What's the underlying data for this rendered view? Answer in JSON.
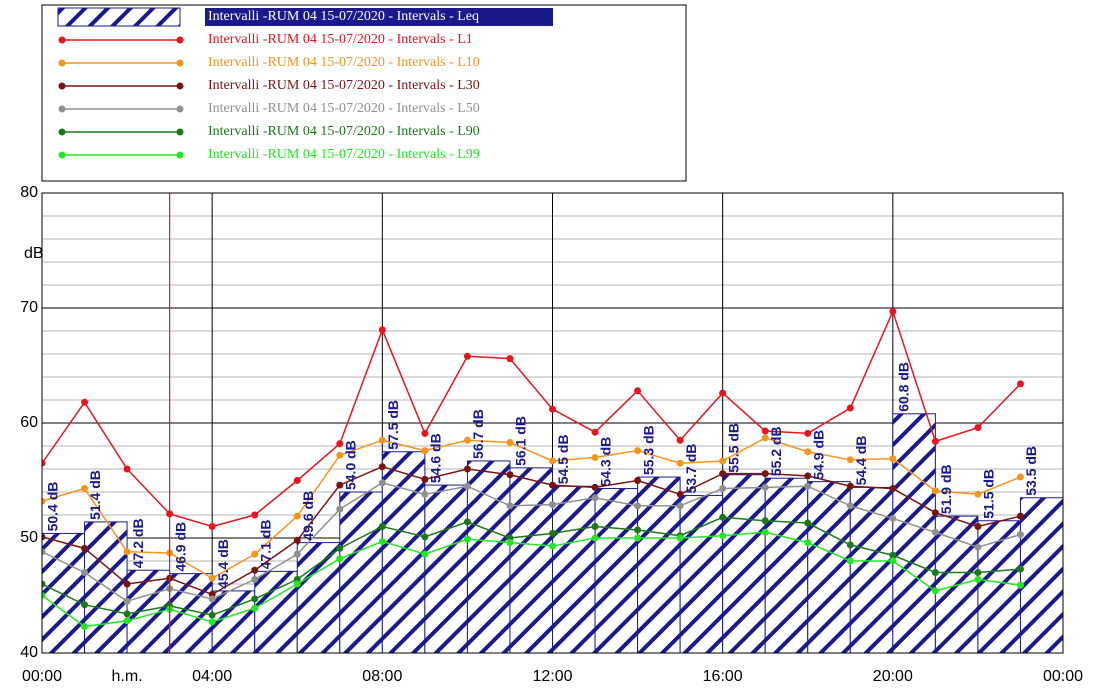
{
  "chart_data": {
    "type": "bar",
    "x": [
      0,
      1,
      2,
      3,
      4,
      5,
      6,
      7,
      8,
      9,
      10,
      11,
      12,
      13,
      14,
      15,
      16,
      17,
      18,
      19,
      20,
      21,
      22,
      23
    ],
    "xlim": [
      0,
      24
    ],
    "xticks": [
      {
        "value": 0,
        "label": "00:00"
      },
      {
        "value": 4,
        "label": "04:00"
      },
      {
        "value": 8,
        "label": "08:00"
      },
      {
        "value": 12,
        "label": "12:00"
      },
      {
        "value": 16,
        "label": "16:00"
      },
      {
        "value": 20,
        "label": "20:00"
      },
      {
        "value": 24,
        "label": "00:00"
      }
    ],
    "x_label": "h.m.",
    "y_label": "dB",
    "ylim": [
      40,
      80
    ],
    "yticks": [
      40,
      50,
      60,
      70,
      80
    ],
    "yminorticks": [
      42,
      44,
      46,
      48,
      52,
      54,
      56,
      58,
      62,
      64,
      66,
      68,
      72,
      74,
      76,
      78
    ],
    "grid": true,
    "cursor_x": 3,
    "series": [
      {
        "name": "Intervalli -RUM 04 15-07/2020 - Intervals - Leq",
        "type": "bar",
        "color": "#1a1a8c",
        "values": [
          50.4,
          51.4,
          47.2,
          46.9,
          45.4,
          47.1,
          49.6,
          54.0,
          57.5,
          54.6,
          56.7,
          56.1,
          54.5,
          54.3,
          55.3,
          53.7,
          55.5,
          55.2,
          54.9,
          54.4,
          60.8,
          51.9,
          51.5,
          53.5
        ],
        "value_labels": [
          "50.4 dB",
          "51.4 dB",
          "47.2 dB",
          "46.9 dB",
          "45.4 dB",
          "47.1 dB",
          "49.6 dB",
          "54.0 dB",
          "57.5 dB",
          "54.6 dB",
          "56.7 dB",
          "56.1 dB",
          "54.5 dB",
          "54.3 dB",
          "55.3 dB",
          "53.7 dB",
          "55.5 dB",
          "55.2 dB",
          "54.9 dB",
          "54.4 dB",
          "60.8 dB",
          "51.9 dB",
          "51.5 dB",
          "53.5 dB"
        ]
      },
      {
        "name": "Intervalli -RUM 04 15-07/2020 - Intervals - L1",
        "type": "line",
        "color": "#e8141e",
        "values": [
          56.5,
          61.8,
          56.0,
          52.1,
          51.0,
          52.0,
          55.0,
          58.2,
          68.1,
          59.1,
          65.8,
          65.6,
          61.2,
          59.2,
          62.8,
          58.5,
          62.6,
          59.3,
          59.1,
          61.3,
          69.7,
          58.4,
          59.6,
          63.4
        ]
      },
      {
        "name": "Intervalli -RUM 04 15-07/2020 - Intervals - L10",
        "type": "line",
        "color": "#f7941d",
        "values": [
          53.2,
          54.3,
          48.8,
          48.7,
          46.5,
          48.6,
          51.9,
          57.2,
          58.5,
          57.6,
          58.5,
          58.3,
          56.7,
          57.0,
          57.6,
          56.5,
          56.7,
          58.7,
          57.5,
          56.8,
          56.9,
          54.1,
          53.8,
          55.3
        ]
      },
      {
        "name": "Intervalli -RUM 04 15-07/2020 - Intervals - L30",
        "type": "line",
        "color": "#7a1414",
        "values": [
          50.1,
          49.1,
          46.0,
          46.5,
          45.1,
          47.2,
          49.8,
          54.6,
          56.2,
          55.1,
          56.0,
          55.5,
          54.6,
          54.4,
          55.0,
          53.8,
          55.6,
          55.6,
          55.4,
          54.5,
          54.3,
          52.2,
          51.0,
          51.9
        ]
      },
      {
        "name": "Intervalli -RUM 04 15-07/2020 - Intervals - L50",
        "type": "line",
        "color": "#909090",
        "values": [
          48.8,
          47.0,
          44.5,
          45.6,
          44.7,
          46.4,
          48.6,
          52.5,
          54.8,
          53.8,
          54.5,
          52.8,
          52.9,
          53.5,
          52.8,
          52.8,
          54.3,
          54.4,
          54.5,
          52.8,
          51.7,
          50.5,
          49.2,
          50.3
        ]
      },
      {
        "name": "Intervalli -RUM 04 15-07/2020 - Intervals - L90",
        "type": "line",
        "color": "#1a7a1a",
        "values": [
          46.0,
          44.2,
          43.4,
          44.1,
          43.3,
          44.7,
          46.4,
          49.1,
          51.0,
          50.1,
          51.4,
          50.0,
          50.4,
          51.0,
          50.7,
          50.2,
          51.8,
          51.5,
          51.3,
          49.4,
          48.5,
          47.0,
          47.0,
          47.3
        ]
      },
      {
        "name": "Intervalli -RUM 04 15-07/2020 - Intervals - L99",
        "type": "line",
        "color": "#22e822",
        "values": [
          45.0,
          42.3,
          42.8,
          43.8,
          42.7,
          43.9,
          46.0,
          48.2,
          49.7,
          48.6,
          49.9,
          49.6,
          49.3,
          50.0,
          50.0,
          50.0,
          50.2,
          50.5,
          49.6,
          48.0,
          48.0,
          45.4,
          46.4,
          45.9
        ]
      }
    ]
  }
}
